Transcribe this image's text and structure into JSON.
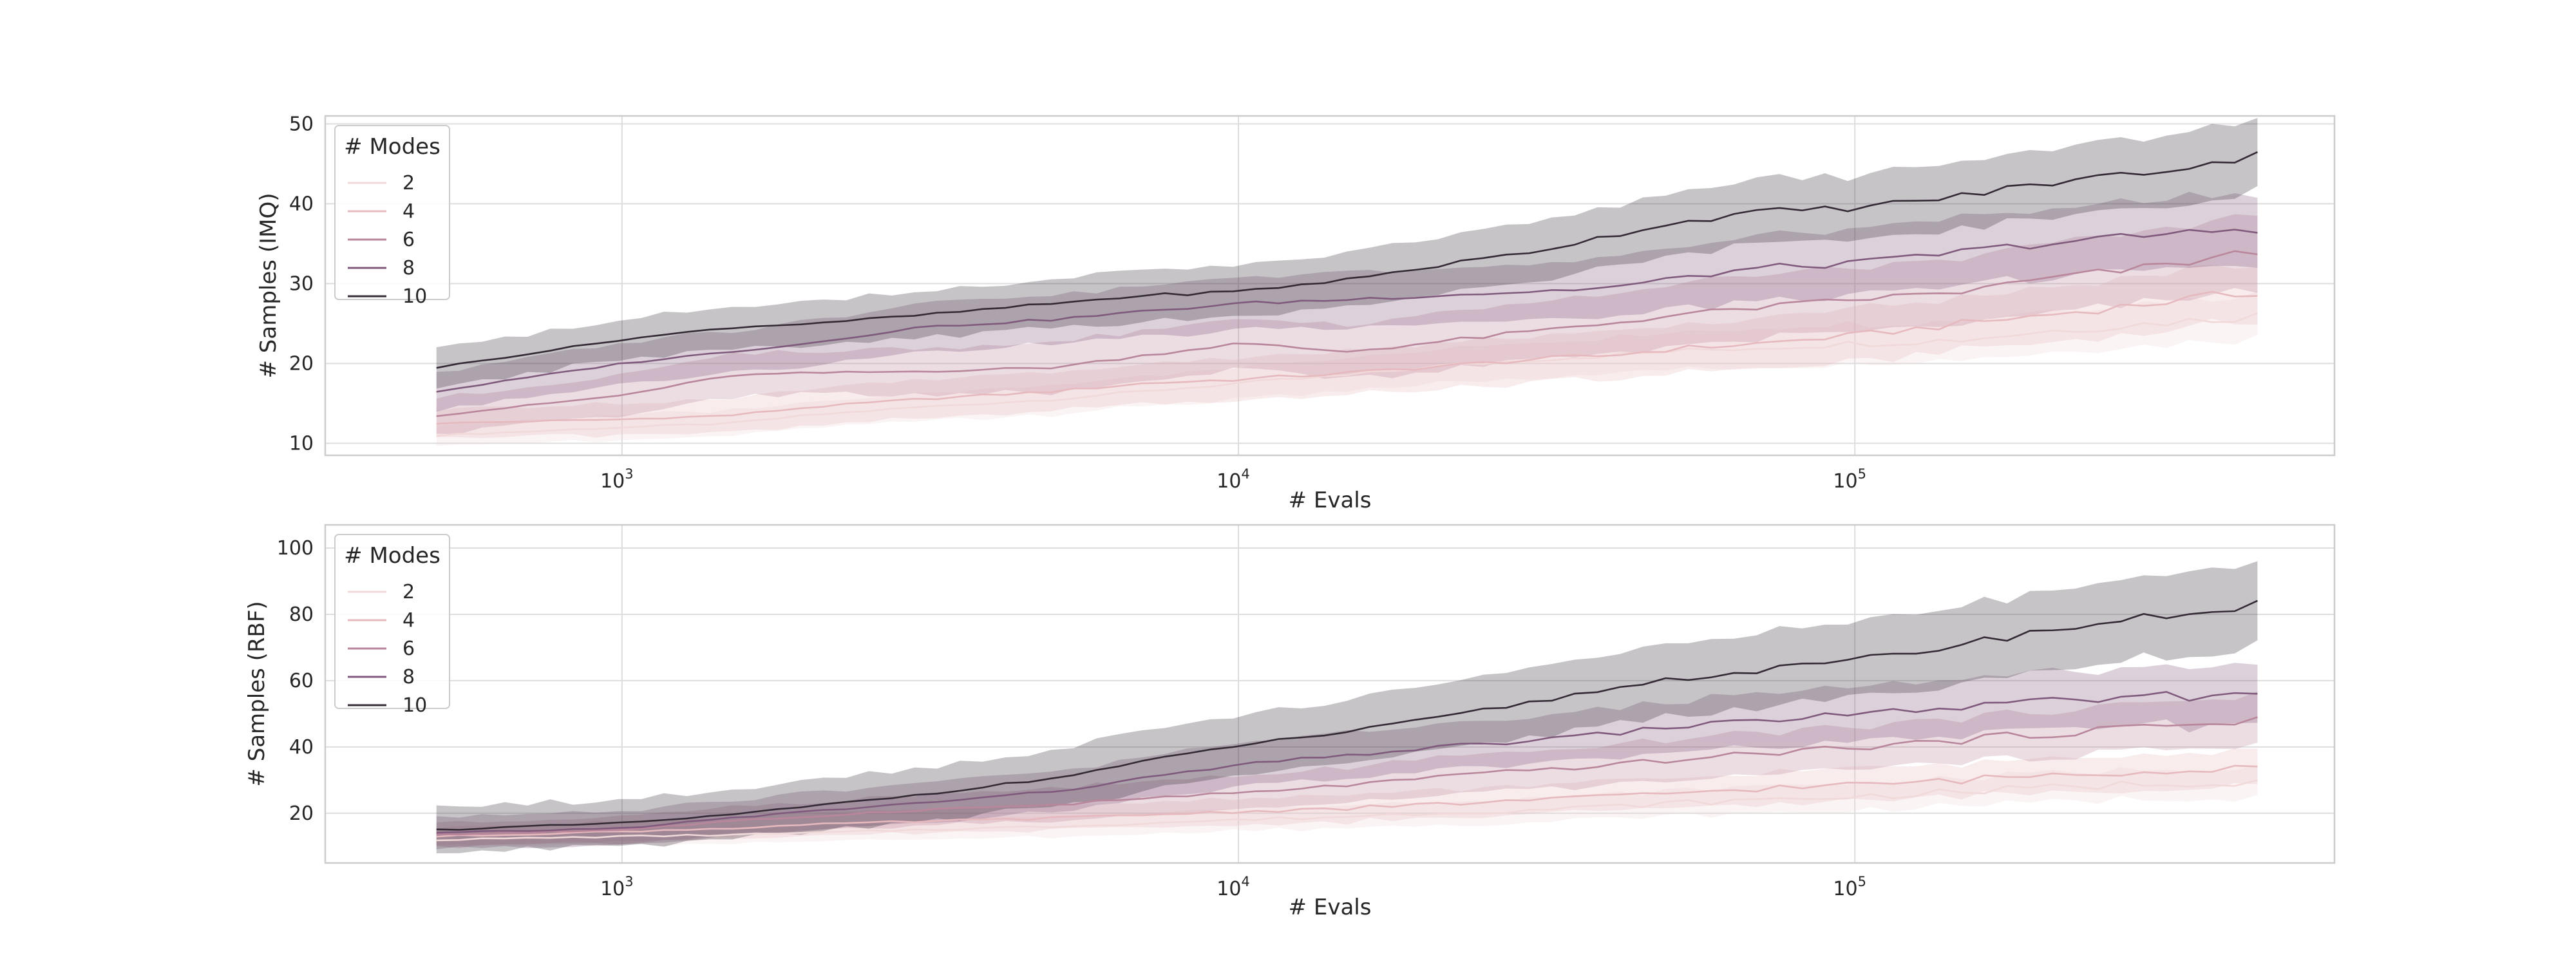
{
  "chart_data": [
    {
      "type": "line",
      "xlabel": "# Evals",
      "ylabel": "# Samples (IMQ)",
      "xscale": "log",
      "xlim": [
        330,
        600000
      ],
      "ylim": [
        8.5,
        51
      ],
      "yticks": [
        10,
        20,
        30,
        40,
        50
      ],
      "xticks": [
        {
          "value": 1000,
          "base": "10",
          "exp": "3"
        },
        {
          "value": 10000,
          "base": "10",
          "exp": "4"
        },
        {
          "value": 100000,
          "base": "10",
          "exp": "5"
        }
      ],
      "grid": true,
      "legend": {
        "title": "# Modes",
        "placement": "upper-left"
      },
      "x": [
        500,
        1000,
        1500,
        2000,
        3000,
        5000,
        7000,
        10000,
        15000,
        20000,
        30000,
        40000,
        50000,
        70000,
        100000,
        150000,
        200000,
        300000,
        450000
      ],
      "series": [
        {
          "name": "2",
          "color": "#f1d9d9",
          "ci": 1.5,
          "values": [
            11.0,
            12.0,
            12.5,
            13.5,
            14.5,
            15.5,
            16.5,
            17.5,
            18.5,
            19.5,
            20.5,
            21.0,
            21.5,
            22.0,
            22.5,
            23.0,
            24.0,
            25.0,
            26.0
          ]
        },
        {
          "name": "4",
          "color": "#e6b9be",
          "ci": 2.0,
          "values": [
            12.5,
            13.0,
            13.5,
            14.5,
            15.5,
            16.5,
            17.5,
            18.0,
            18.8,
            19.5,
            20.5,
            21.0,
            21.8,
            22.5,
            23.5,
            25.0,
            26.0,
            27.5,
            29.0
          ]
        },
        {
          "name": "6",
          "color": "#b9869b",
          "ci": 2.5,
          "values": [
            13.5,
            16.0,
            18.5,
            18.8,
            19.0,
            19.5,
            21.0,
            22.5,
            21.5,
            22.5,
            24.0,
            25.0,
            26.0,
            27.0,
            28.0,
            29.0,
            30.5,
            32.0,
            34.0
          ]
        },
        {
          "name": "8",
          "color": "#805a7c",
          "ci": 2.5,
          "values": [
            16.5,
            20.0,
            21.5,
            22.5,
            24.5,
            25.5,
            26.5,
            27.5,
            28.0,
            28.5,
            29.0,
            29.5,
            30.5,
            32.0,
            32.5,
            34.0,
            35.0,
            36.0,
            37.0
          ]
        },
        {
          "name": "10",
          "color": "#332a35",
          "ci": 2.5,
          "values": [
            19.5,
            23.0,
            24.5,
            25.0,
            26.0,
            27.5,
            28.5,
            29.0,
            30.5,
            32.0,
            34.0,
            36.0,
            37.5,
            39.0,
            39.5,
            41.0,
            42.5,
            44.0,
            46.0
          ]
        }
      ]
    },
    {
      "type": "line",
      "xlabel": "# Evals",
      "ylabel": "# Samples (RBF)",
      "xscale": "log",
      "xlim": [
        330,
        600000
      ],
      "ylim": [
        5,
        107
      ],
      "yticks": [
        20,
        40,
        60,
        80,
        100
      ],
      "xticks": [
        {
          "value": 1000,
          "base": "10",
          "exp": "3"
        },
        {
          "value": 10000,
          "base": "10",
          "exp": "4"
        },
        {
          "value": 100000,
          "base": "10",
          "exp": "5"
        }
      ],
      "grid": true,
      "legend": {
        "title": "# Modes",
        "placement": "upper-left"
      },
      "x": [
        500,
        1000,
        1500,
        2000,
        3000,
        5000,
        7000,
        10000,
        15000,
        20000,
        30000,
        40000,
        50000,
        70000,
        100000,
        150000,
        200000,
        300000,
        450000
      ],
      "series": [
        {
          "name": "2",
          "color": "#f1d9d9",
          "ci": 2.5,
          "values": [
            12.0,
            13.0,
            13.5,
            14.0,
            15.0,
            16.0,
            17.0,
            18.0,
            19.0,
            20.0,
            21.0,
            22.0,
            23.0,
            24.0,
            25.0,
            26.5,
            27.5,
            29.0,
            30.0
          ]
        },
        {
          "name": "4",
          "color": "#e6b9be",
          "ci": 3.0,
          "values": [
            13.0,
            14.5,
            15.5,
            16.5,
            17.5,
            18.5,
            19.5,
            20.5,
            21.5,
            22.5,
            24.0,
            25.0,
            26.0,
            27.5,
            28.5,
            30.0,
            31.5,
            33.0,
            34.5
          ]
        },
        {
          "name": "6",
          "color": "#b9869b",
          "ci": 4.0,
          "values": [
            13.5,
            15.0,
            17.5,
            19.0,
            21.0,
            22.5,
            24.5,
            26.0,
            28.5,
            30.5,
            33.0,
            34.5,
            36.0,
            38.0,
            40.0,
            42.0,
            44.0,
            46.0,
            48.5
          ]
        },
        {
          "name": "8",
          "color": "#805a7c",
          "ci": 5.0,
          "values": [
            14.0,
            15.5,
            18.5,
            20.5,
            23.0,
            26.5,
            30.5,
            34.5,
            37.5,
            39.5,
            42.0,
            44.0,
            46.0,
            48.0,
            50.0,
            52.0,
            53.5,
            55.0,
            56.0
          ]
        },
        {
          "name": "10",
          "color": "#332a35",
          "ci": 7.0,
          "values": [
            15.0,
            17.0,
            19.5,
            22.0,
            25.5,
            30.5,
            35.5,
            40.5,
            44.5,
            48.0,
            53.5,
            57.5,
            60.5,
            63.0,
            66.0,
            71.0,
            75.0,
            79.0,
            83.0
          ]
        }
      ]
    }
  ]
}
